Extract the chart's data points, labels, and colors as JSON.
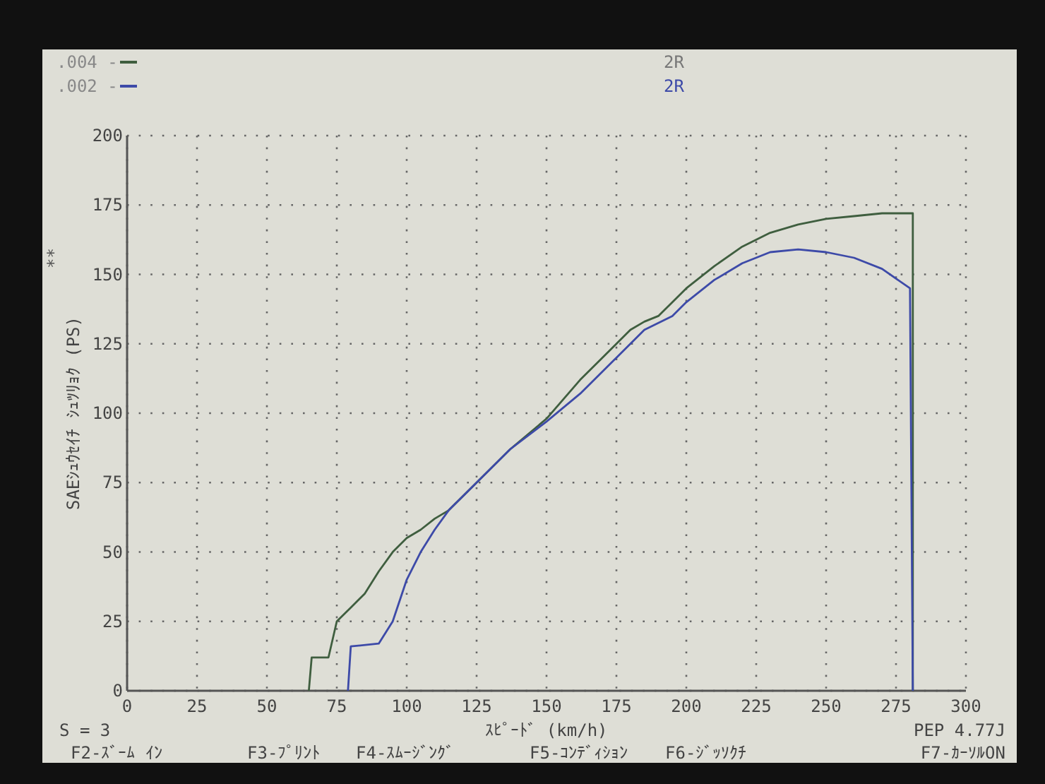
{
  "chart_data": {
    "type": "line",
    "xlabel": "ｽﾋﾟｰﾄﾞ (km/h)",
    "ylabel": "SAEｼｭｳｾｲﾁ ｼｭﾂﾘｮｸ (PS)",
    "xlim": [
      0,
      300
    ],
    "ylim": [
      0,
      200
    ],
    "xticks": [
      0,
      25,
      50,
      75,
      100,
      125,
      150,
      175,
      200,
      225,
      250,
      275,
      300
    ],
    "yticks": [
      0,
      25,
      50,
      75,
      100,
      125,
      150,
      175,
      200
    ],
    "grid": true,
    "line_style": "solid",
    "legend": "top left",
    "series": [
      {
        "name": ".004 -",
        "color": "#3f5e3f",
        "x": [
          65,
          66,
          72,
          75,
          80,
          85,
          90,
          95,
          100,
          105,
          110,
          115,
          125,
          137,
          150,
          162,
          175,
          180,
          185,
          190,
          200,
          210,
          220,
          230,
          240,
          250,
          260,
          270,
          281,
          281
        ],
        "values": [
          0,
          12,
          12,
          25,
          30,
          35,
          43,
          50,
          55,
          58,
          62,
          65,
          75,
          87,
          98,
          112,
          125,
          130,
          133,
          135,
          145,
          153,
          160,
          165,
          168,
          170,
          171,
          172,
          172,
          0
        ]
      },
      {
        "name": ".002 -",
        "color": "#3d4aa8",
        "x": [
          79,
          80,
          90,
          95,
          100,
          105,
          110,
          115,
          125,
          137,
          150,
          162,
          175,
          185,
          195,
          200,
          210,
          220,
          230,
          240,
          250,
          260,
          270,
          280,
          281
        ],
        "values": [
          0,
          16,
          17,
          25,
          40,
          50,
          58,
          65,
          75,
          87,
          97,
          107,
          120,
          130,
          135,
          140,
          148,
          154,
          158,
          159,
          158,
          156,
          152,
          145,
          0
        ]
      }
    ],
    "annotations": [
      "2R",
      "2R",
      "**",
      "S = 3",
      "PEP 4.77J",
      "F2-ｽﾞｰﾑ ｲﾝ",
      "F3-ﾌﾟﾘﾝﾄ",
      "F4-ｽﾑｰｼﾞﾝｸﾞ",
      "F5-ｺﾝﾃﾞｨｼｮﾝ",
      "F6-ｼﾞｯｿｸﾁ",
      "F7-ｶｰｿﾙON"
    ]
  }
}
